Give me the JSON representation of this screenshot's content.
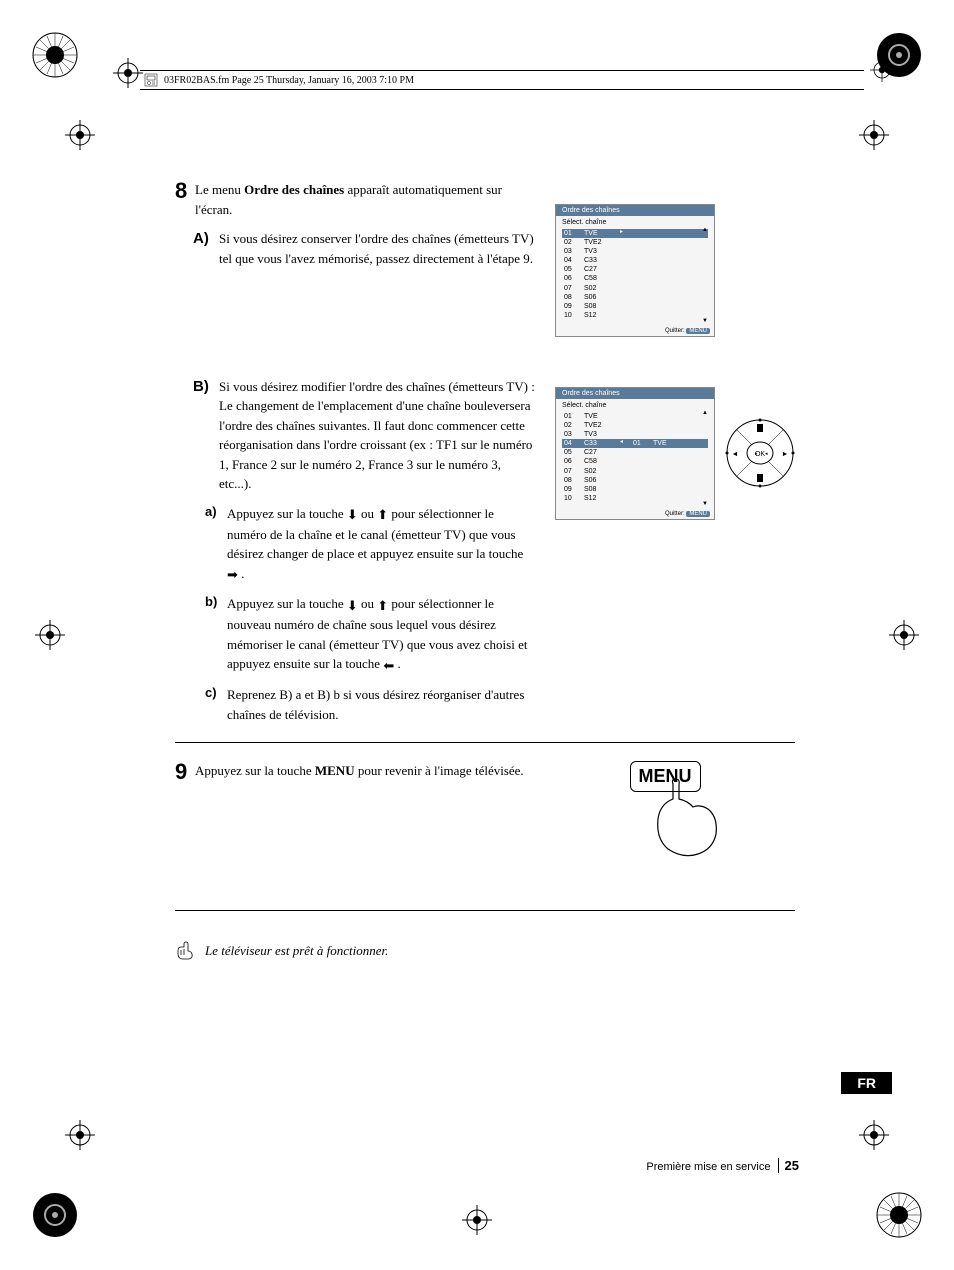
{
  "header": {
    "fileinfo": "03FR02BAS.fm  Page 25  Thursday, January 16, 2003  7:10 PM"
  },
  "step8": {
    "num": "8",
    "intro_a": "Le menu ",
    "intro_bold": "Ordre des chaînes",
    "intro_b": " apparaît automatiquement sur l'écran.",
    "A": {
      "label": "A)",
      "text": "Si vous désirez conserver l'ordre des chaînes (émetteurs TV) tel que vous l'avez mémorisé, passez directement à l'étape 9."
    },
    "B": {
      "label": "B)",
      "text1": "Si vous désirez modifier l'ordre des chaînes (émetteurs TV) :",
      "text2": "Le changement de l'emplacement d'une chaîne bouleversera l'ordre des chaînes suivantes. Il faut donc commencer cette réorganisation dans l'ordre croissant (ex : TF1 sur le numéro 1, France 2 sur le numéro 2, France 3 sur le numéro 3, etc...).",
      "a": {
        "label": "a)",
        "t1": "Appuyez sur la touche ",
        "t2": " ou ",
        "t3": " pour sélectionner le numéro de la chaîne et le canal (émetteur TV) que vous désirez changer de place et appuyez ensuite sur la touche ",
        "t4": " ."
      },
      "b": {
        "label": "b)",
        "t1": "Appuyez sur la touche ",
        "t2": " ou ",
        "t3": " pour sélectionner le nouveau numéro de chaîne sous lequel vous désirez mémoriser le canal (émetteur TV) que vous avez choisi et appuyez ensuite sur la touche ",
        "t4": " ."
      },
      "c": {
        "label": "c)",
        "text": "Reprenez B) a et  B) b si vous désirez réorganiser d'autres chaînes de télévision."
      }
    }
  },
  "step9": {
    "num": "9",
    "t1": "Appuyez sur la touche ",
    "bold": "MENU",
    "t2": " pour revenir à l'image télévisée.",
    "button": "MENU"
  },
  "tvscreen": {
    "title": "Ordre des chaînes",
    "subtitle": "Sélect. chaîne",
    "quit_label": "Quitter:",
    "quit_btn": "MENU",
    "rows": [
      {
        "n": "01",
        "c": "TVE"
      },
      {
        "n": "02",
        "c": "TVE2"
      },
      {
        "n": "03",
        "c": "TV3"
      },
      {
        "n": "04",
        "c": "C33"
      },
      {
        "n": "05",
        "c": "C27"
      },
      {
        "n": "06",
        "c": "C58"
      },
      {
        "n": "07",
        "c": "S02"
      },
      {
        "n": "08",
        "c": "S06"
      },
      {
        "n": "09",
        "c": "S08"
      },
      {
        "n": "10",
        "c": "S12"
      }
    ],
    "moved": {
      "n": "01",
      "c": "TVE"
    }
  },
  "note": {
    "text": "Le téléviseur est prêt à fonctionner."
  },
  "footer": {
    "section": "Première mise en service",
    "page": "25"
  },
  "lang": "FR",
  "colors": {
    "tv_header": "#5a7a9a",
    "tv_bg": "#f5f5f5"
  }
}
